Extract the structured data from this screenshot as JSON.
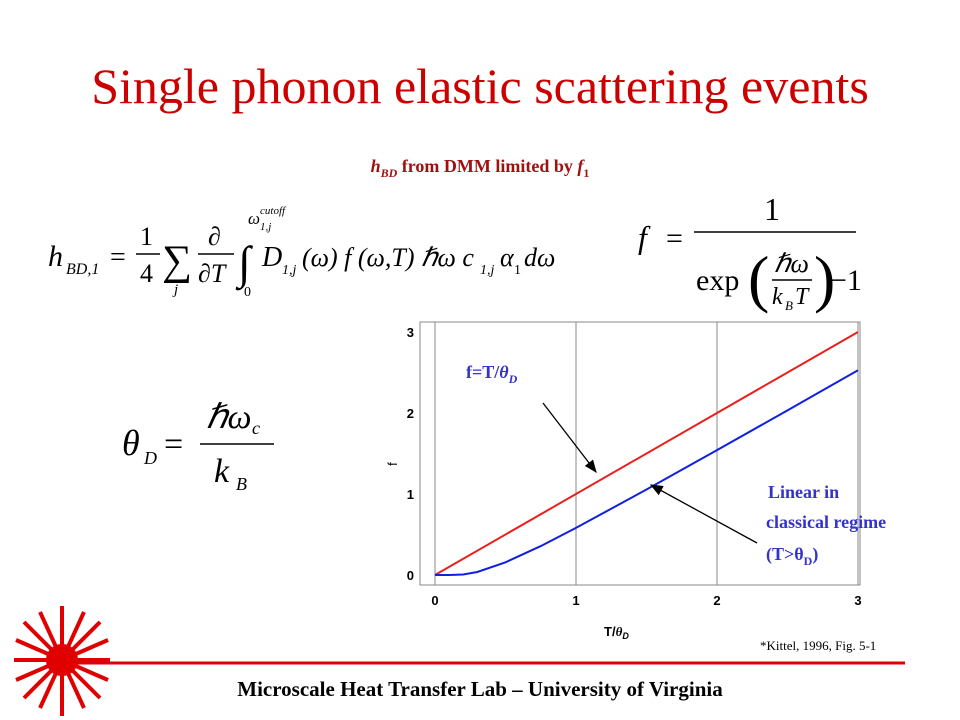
{
  "slide": {
    "title": "Single phonon elastic scattering events",
    "subtitle": [
      "h",
      "BD",
      " from DMM limited by ",
      "f",
      "1"
    ],
    "footer": "Microscale Heat Transfer Lab – University of Virginia",
    "citation": "*Kittel, 1996, Fig. 5-1"
  },
  "equations": {
    "hbd": [
      "h",
      "BD,1",
      "=",
      "1",
      "4",
      "∑",
      "j",
      "∂",
      "∂T",
      "∫",
      "0",
      "ω",
      "cutoff",
      "1,j",
      "D",
      "1,j",
      "(ω) f (ω,T) ℏω c",
      "1,j",
      "α",
      "1",
      "dω"
    ],
    "f": [
      "f",
      "=",
      "1",
      "exp",
      "(",
      "ℏω",
      "k",
      "B",
      "T",
      ")",
      "−1"
    ],
    "theta": [
      "θ",
      "D",
      "=",
      "ℏω",
      "c",
      "k",
      "B"
    ]
  },
  "chart_data": {
    "type": "line",
    "x_label": [
      "T/",
      "θ",
      "D"
    ],
    "y_label": "f",
    "xlim": [
      0,
      3
    ],
    "ylim": [
      0,
      3
    ],
    "xticks": [
      0,
      1,
      2,
      3
    ],
    "yticks": [
      0,
      1,
      2,
      3
    ],
    "grid": "x",
    "series": [
      {
        "name": "f=T/θD",
        "color": "#e8201c",
        "x": [
          0,
          3
        ],
        "values": [
          0,
          3
        ]
      },
      {
        "name": "f",
        "color": "#1020e0",
        "x": [
          0,
          0.1,
          0.2,
          0.3,
          0.5,
          0.75,
          1,
          1.5,
          2,
          2.5,
          3
        ],
        "values": [
          0,
          5e-05,
          0.0068,
          0.037,
          0.157,
          0.357,
          0.582,
          1.055,
          1.541,
          2.033,
          2.528
        ]
      }
    ],
    "annotations": [
      [
        "f=T/",
        "θ",
        "D"
      ],
      [
        "Linear in",
        "classical regime",
        "(T>θ",
        "D",
        ")"
      ]
    ]
  }
}
